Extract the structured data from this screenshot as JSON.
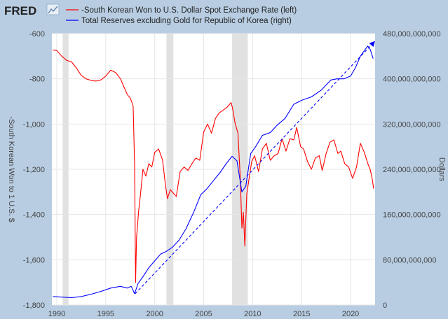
{
  "logo": {
    "text": "FRED"
  },
  "legend": [
    {
      "label": "-South Korean Won to U.S. Dollar Spot Exchange Rate (left)",
      "color": "#ff0000"
    },
    {
      "label": "Total Reserves excluding Gold for Republic of Korea (right)",
      "color": "#0000ff"
    }
  ],
  "chart_data": {
    "type": "line",
    "xlim": [
      1989.5,
      2022.5
    ],
    "x_ticks": [
      {
        "value": 1990,
        "label": "1990"
      },
      {
        "value": 1995,
        "label": "1995"
      },
      {
        "value": 2000,
        "label": "2000"
      },
      {
        "value": 2005,
        "label": "2005"
      },
      {
        "value": 2010,
        "label": "2010"
      },
      {
        "value": 2015,
        "label": "2015"
      },
      {
        "value": 2020,
        "label": "2020"
      }
    ],
    "y_left": {
      "label": "-South Korean Won to 1 U.S. $",
      "lim": [
        -1800,
        -600
      ],
      "ticks": [
        {
          "value": -600,
          "label": "-600"
        },
        {
          "value": -800,
          "label": "-800"
        },
        {
          "value": -1000,
          "label": "-1,000"
        },
        {
          "value": -1200,
          "label": "-1,200"
        },
        {
          "value": -1400,
          "label": "-1,400"
        },
        {
          "value": -1600,
          "label": "-1,600"
        },
        {
          "value": -1800,
          "label": "-1,800"
        }
      ]
    },
    "y_right": {
      "label": "Dollars",
      "lim": [
        0,
        480000000000
      ],
      "ticks": [
        {
          "value": 0,
          "label": "0"
        },
        {
          "value": 80000000000,
          "label": "80,000,000,000"
        },
        {
          "value": 160000000000,
          "label": "160,000,000,000"
        },
        {
          "value": 240000000000,
          "label": "240,000,000,000"
        },
        {
          "value": 320000000000,
          "label": "320,000,000,000"
        },
        {
          "value": 400000000000,
          "label": "400,000,000,000"
        },
        {
          "value": 480000000000,
          "label": "480,000,000,000"
        }
      ]
    },
    "recessions": [
      [
        1990.6,
        1991.2
      ],
      [
        2001.2,
        2001.9
      ],
      [
        2007.9,
        2009.5
      ]
    ],
    "series": [
      {
        "name": "-South Korean Won to U.S. Dollar Spot Exchange Rate (left)",
        "axis": "left",
        "color": "#ff0000",
        "points": [
          [
            1989.6,
            -672
          ],
          [
            1990.0,
            -675
          ],
          [
            1990.5,
            -700
          ],
          [
            1991.0,
            -718
          ],
          [
            1991.5,
            -725
          ],
          [
            1992.0,
            -752
          ],
          [
            1992.5,
            -785
          ],
          [
            1993.0,
            -800
          ],
          [
            1993.5,
            -807
          ],
          [
            1994.0,
            -810
          ],
          [
            1994.5,
            -805
          ],
          [
            1995.0,
            -788
          ],
          [
            1995.5,
            -762
          ],
          [
            1996.0,
            -772
          ],
          [
            1996.5,
            -800
          ],
          [
            1996.9,
            -840
          ],
          [
            1997.2,
            -870
          ],
          [
            1997.5,
            -885
          ],
          [
            1997.8,
            -920
          ],
          [
            1997.95,
            -1180
          ],
          [
            1998.05,
            -1700
          ],
          [
            1998.15,
            -1500
          ],
          [
            1998.35,
            -1390
          ],
          [
            1998.55,
            -1310
          ],
          [
            1998.8,
            -1200
          ],
          [
            1999.1,
            -1230
          ],
          [
            1999.4,
            -1175
          ],
          [
            1999.7,
            -1190
          ],
          [
            2000.0,
            -1125
          ],
          [
            2000.4,
            -1110
          ],
          [
            2000.8,
            -1160
          ],
          [
            2001.1,
            -1270
          ],
          [
            2001.3,
            -1330
          ],
          [
            2001.6,
            -1290
          ],
          [
            2001.9,
            -1305
          ],
          [
            2002.2,
            -1320
          ],
          [
            2002.6,
            -1210
          ],
          [
            2003.0,
            -1190
          ],
          [
            2003.4,
            -1205
          ],
          [
            2003.8,
            -1175
          ],
          [
            2004.2,
            -1150
          ],
          [
            2004.6,
            -1160
          ],
          [
            2005.0,
            -1035
          ],
          [
            2005.4,
            -1000
          ],
          [
            2005.8,
            -1040
          ],
          [
            2006.2,
            -975
          ],
          [
            2006.6,
            -950
          ],
          [
            2007.0,
            -938
          ],
          [
            2007.4,
            -925
          ],
          [
            2007.8,
            -905
          ],
          [
            2007.95,
            -930
          ],
          [
            2008.2,
            -995
          ],
          [
            2008.5,
            -1040
          ],
          [
            2008.75,
            -1250
          ],
          [
            2008.9,
            -1460
          ],
          [
            2009.05,
            -1390
          ],
          [
            2009.2,
            -1540
          ],
          [
            2009.4,
            -1310
          ],
          [
            2009.6,
            -1250
          ],
          [
            2009.9,
            -1165
          ],
          [
            2010.2,
            -1140
          ],
          [
            2010.6,
            -1210
          ],
          [
            2011.0,
            -1110
          ],
          [
            2011.4,
            -1085
          ],
          [
            2011.8,
            -1160
          ],
          [
            2012.2,
            -1140
          ],
          [
            2012.6,
            -1130
          ],
          [
            2013.0,
            -1065
          ],
          [
            2013.4,
            -1120
          ],
          [
            2013.8,
            -1065
          ],
          [
            2014.2,
            -1070
          ],
          [
            2014.5,
            -1015
          ],
          [
            2014.9,
            -1100
          ],
          [
            2015.2,
            -1110
          ],
          [
            2015.6,
            -1165
          ],
          [
            2016.0,
            -1200
          ],
          [
            2016.4,
            -1150
          ],
          [
            2016.8,
            -1140
          ],
          [
            2017.1,
            -1205
          ],
          [
            2017.5,
            -1130
          ],
          [
            2017.9,
            -1080
          ],
          [
            2018.3,
            -1070
          ],
          [
            2018.7,
            -1130
          ],
          [
            2019.0,
            -1120
          ],
          [
            2019.4,
            -1175
          ],
          [
            2019.8,
            -1190
          ],
          [
            2020.2,
            -1240
          ],
          [
            2020.6,
            -1190
          ],
          [
            2021.0,
            -1085
          ],
          [
            2021.4,
            -1125
          ],
          [
            2021.8,
            -1180
          ],
          [
            2022.0,
            -1200
          ],
          [
            2022.2,
            -1240
          ],
          [
            2022.35,
            -1285
          ]
        ]
      },
      {
        "name": "Total Reserves excluding Gold for Republic of Korea (right)",
        "axis": "right",
        "color": "#0000ff",
        "points": [
          [
            1989.6,
            15000000000
          ],
          [
            1990.5,
            14000000000
          ],
          [
            1991.5,
            13000000000
          ],
          [
            1992.5,
            15000000000
          ],
          [
            1993.5,
            19000000000
          ],
          [
            1994.5,
            24000000000
          ],
          [
            1995.5,
            30000000000
          ],
          [
            1996.5,
            33000000000
          ],
          [
            1997.2,
            30000000000
          ],
          [
            1997.6,
            33000000000
          ],
          [
            1997.95,
            20000000000
          ],
          [
            1998.3,
            38000000000
          ],
          [
            1998.8,
            50000000000
          ],
          [
            1999.4,
            66000000000
          ],
          [
            2000.0,
            78000000000
          ],
          [
            2000.6,
            90000000000
          ],
          [
            2001.2,
            95000000000
          ],
          [
            2001.8,
            102000000000
          ],
          [
            2002.5,
            115000000000
          ],
          [
            2003.2,
            135000000000
          ],
          [
            2004.0,
            165000000000
          ],
          [
            2004.7,
            195000000000
          ],
          [
            2005.3,
            205000000000
          ],
          [
            2006.0,
            220000000000
          ],
          [
            2006.7,
            235000000000
          ],
          [
            2007.3,
            250000000000
          ],
          [
            2007.9,
            263000000000
          ],
          [
            2008.4,
            255000000000
          ],
          [
            2008.9,
            200000000000
          ],
          [
            2009.3,
            210000000000
          ],
          [
            2009.8,
            268000000000
          ],
          [
            2010.3,
            280000000000
          ],
          [
            2011.0,
            300000000000
          ],
          [
            2011.8,
            305000000000
          ],
          [
            2012.5,
            318000000000
          ],
          [
            2013.3,
            330000000000
          ],
          [
            2014.2,
            355000000000
          ],
          [
            2015.0,
            362000000000
          ],
          [
            2016.0,
            368000000000
          ],
          [
            2017.0,
            380000000000
          ],
          [
            2018.0,
            398000000000
          ],
          [
            2018.6,
            400000000000
          ],
          [
            2019.3,
            400000000000
          ],
          [
            2020.0,
            405000000000
          ],
          [
            2020.5,
            420000000000
          ],
          [
            2021.0,
            440000000000
          ],
          [
            2021.5,
            452000000000
          ],
          [
            2021.75,
            458000000000
          ],
          [
            2022.0,
            452000000000
          ],
          [
            2022.3,
            436000000000
          ]
        ]
      }
    ],
    "annotations": [
      {
        "type": "dashed-arrow",
        "axis": "right",
        "color": "#0000ff",
        "from": [
          1998.0,
          20000000000
        ],
        "to": [
          2022.4,
          465000000000
        ]
      }
    ]
  }
}
